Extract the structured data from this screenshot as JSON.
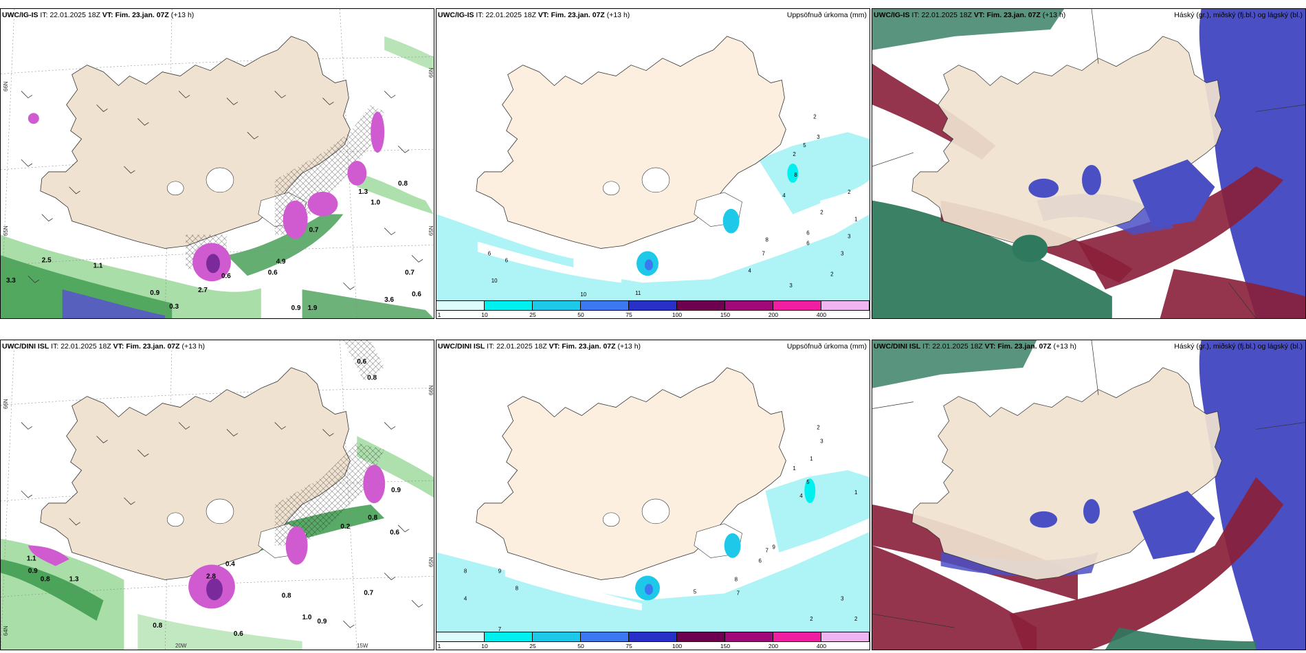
{
  "panels": {
    "p1": {
      "model": "UWC/IG-IS",
      "it_label": "IT:",
      "it_value": "22.01.2025 18Z",
      "vt_label": "VT:",
      "vt_value": "Fim. 23.jan. 07Z",
      "lead": "(+13 h)",
      "subtitle": ""
    },
    "p2": {
      "model": "UWC/IG-IS",
      "it_label": "IT:",
      "it_value": "22.01.2025 18Z",
      "vt_label": "VT:",
      "vt_value": "Fim. 23.jan. 07Z",
      "lead": "(+13 h)",
      "subtitle": "Uppsöfnuð úrkoma (mm)"
    },
    "p3": {
      "model": "UWC/IG-IS",
      "it_label": "IT:",
      "it_value": "22.01.2025 18Z",
      "vt_label": "VT:",
      "vt_value": "Fim. 23.jan. 07Z",
      "lead": "(+13 h)",
      "subtitle": "Háský (gr.), miðský (fj.bl.) og lágský (bl.)"
    },
    "p4": {
      "model": "UWC/DINI ISL",
      "it_label": "IT:",
      "it_value": "22.01.2025 18Z",
      "vt_label": "VT:",
      "vt_value": "Fim. 23.jan. 07Z",
      "lead": "(+13 h)",
      "subtitle": ""
    },
    "p5": {
      "model": "UWC/DINI ISL",
      "it_label": "IT:",
      "it_value": "22.01.2025 18Z",
      "vt_label": "VT:",
      "vt_value": "Fim. 23.jan. 07Z",
      "lead": "(+13 h)",
      "subtitle": "Uppsöfnuð úrkoma (mm)"
    },
    "p6": {
      "model": "UWC/DINI ISL",
      "it_label": "IT:",
      "it_value": "22.01.2025 18Z",
      "vt_label": "VT:",
      "vt_value": "Fim. 23.jan. 07Z",
      "lead": "(+13 h)",
      "subtitle": "Háský (gr.), miðský (fj.bl.) og lágský (bl.)"
    }
  },
  "legend": {
    "ticks": [
      "1",
      "10",
      "25",
      "50",
      "75",
      "100",
      "150",
      "200",
      "400"
    ],
    "colors": [
      "#dffcfc",
      "#00f0f0",
      "#1ec8e8",
      "#3c78f0",
      "#2830c8",
      "#6e0050",
      "#a00a78",
      "#f01ea0",
      "#f0b4f0"
    ]
  },
  "axes": {
    "lat66": "66N",
    "lat65": "65N",
    "lat64": "64N",
    "lon20": "20W",
    "lon15": "15W"
  },
  "values": {
    "p1": [
      "3.3",
      "2.5",
      "1.1",
      "0.7",
      "0.6",
      "4.9",
      "1.3",
      "2.7",
      "0.6",
      "0.3",
      "0.9",
      "0.6",
      "1.0",
      "0.8",
      "0.9",
      "3.6",
      "1.9",
      "0.7"
    ],
    "p2": [
      "2",
      "3",
      "2",
      "5",
      "8",
      "4",
      "2",
      "6",
      "7",
      "8",
      "4",
      "6",
      "3",
      "2",
      "6",
      "3",
      "10",
      "11",
      "10",
      "6",
      "2",
      "1",
      "3"
    ],
    "p4": [
      "0.6",
      "0.8",
      "0.9",
      "1.1",
      "0.8",
      "1.3",
      "0.9",
      "0.8",
      "0.6",
      "0.2",
      "0.8",
      "0.7",
      "1.0",
      "0.9",
      "0.8",
      "0.4",
      "2.8",
      "0.6"
    ],
    "p5": [
      "2",
      "3",
      "1",
      "1",
      "5",
      "4",
      "7",
      "6",
      "9",
      "8",
      "5",
      "7",
      "3",
      "2",
      "4",
      "8",
      "9",
      "8",
      "7",
      "2",
      "1"
    ]
  },
  "colors": {
    "land": "#fdefe0",
    "cyan_light": "#aef4f6",
    "green_band": "#3c9a4c",
    "magenta": "#d05ad0",
    "cloud_blue": "#4b4fc4",
    "cloud_red": "#8a1f3a",
    "cloud_green": "#2f7a5e"
  }
}
